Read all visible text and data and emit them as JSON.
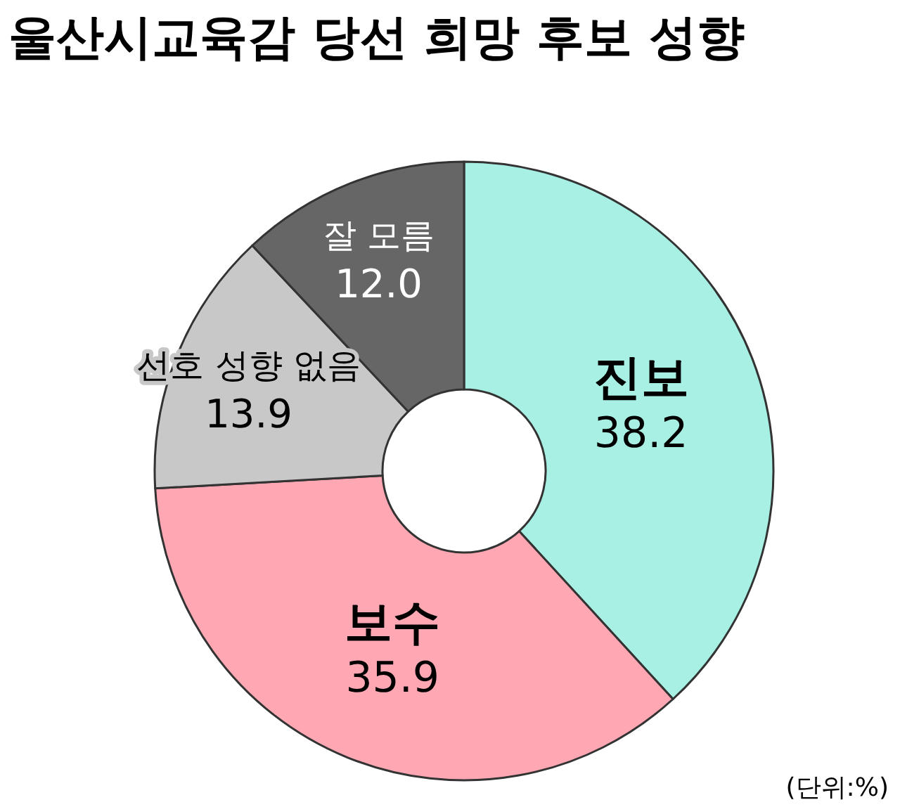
{
  "chart_data": {
    "type": "donut",
    "title": "울산시교육감 당선 희망 후보 성향",
    "categories": [
      "진보",
      "보수",
      "선호 성향 없음",
      "잘 모름"
    ],
    "values": [
      38.2,
      35.9,
      13.9,
      12.0
    ],
    "colors": [
      "#a8f0e4",
      "#ffa8b4",
      "#c8c8c8",
      "#666666"
    ],
    "value_labels": [
      "38.2",
      "35.9",
      "13.9",
      "12.0"
    ],
    "annotations": [
      "(단위:%)"
    ]
  }
}
